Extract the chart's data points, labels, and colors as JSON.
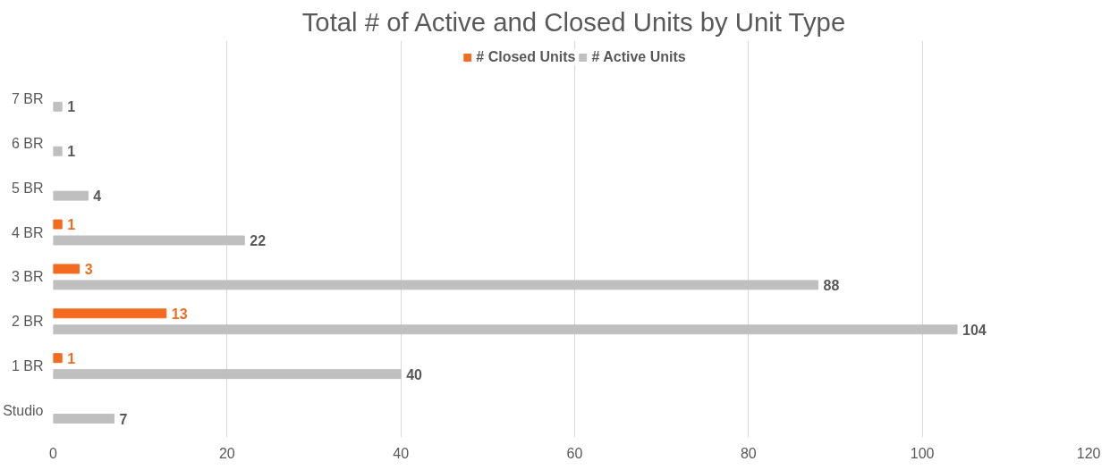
{
  "chart_data": {
    "type": "bar",
    "orientation": "horizontal",
    "title": "Total # of Active and Closed Units by Unit Type",
    "categories": [
      "7 BR",
      "6 BR",
      "5 BR",
      "4 BR",
      "3 BR",
      "2 BR",
      "1 BR",
      "Studio"
    ],
    "series": [
      {
        "name": "# Closed Units",
        "color": "#f26b21",
        "values": [
          null,
          null,
          null,
          1,
          3,
          13,
          1,
          null
        ]
      },
      {
        "name": "# Active Units",
        "color": "#bfbfbf",
        "values": [
          1,
          1,
          4,
          22,
          88,
          104,
          40,
          7
        ]
      }
    ],
    "xlim": [
      0,
      120
    ],
    "xticks": [
      0,
      20,
      40,
      60,
      80,
      100,
      120
    ],
    "grid": "x",
    "legend": "top",
    "data_labels": true
  }
}
